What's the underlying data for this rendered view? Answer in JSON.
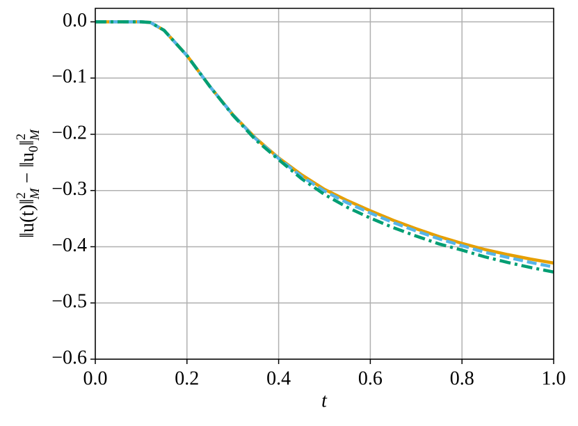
{
  "chart_data": {
    "type": "line",
    "x_label": "t",
    "y_label": [
      "‖u(t)‖",
      "2",
      "M",
      " − ‖u",
      "0",
      "‖",
      "2",
      "M"
    ],
    "x": [
      0,
      0.05,
      0.1,
      0.12,
      0.15,
      0.2,
      0.25,
      0.3,
      0.35,
      0.4,
      0.45,
      0.5,
      0.55,
      0.6,
      0.65,
      0.7,
      0.75,
      0.8,
      0.85,
      0.9,
      0.95,
      1.0
    ],
    "series": [
      {
        "color": "#E69F00",
        "dash": "solid",
        "values": [
          0,
          0,
          0,
          -0.001,
          -0.015,
          -0.06,
          -0.115,
          -0.165,
          -0.207,
          -0.242,
          -0.272,
          -0.298,
          -0.318,
          -0.336,
          -0.353,
          -0.368,
          -0.382,
          -0.394,
          -0.405,
          -0.414,
          -0.422,
          -0.429
        ]
      },
      {
        "color": "#56B4E9",
        "dash": "dashed",
        "values": [
          0,
          0,
          0,
          -0.001,
          -0.015,
          -0.06,
          -0.115,
          -0.165,
          -0.208,
          -0.243,
          -0.275,
          -0.301,
          -0.322,
          -0.34,
          -0.357,
          -0.372,
          -0.386,
          -0.398,
          -0.41,
          -0.419,
          -0.428,
          -0.436
        ]
      },
      {
        "color": "#009E73",
        "dash": "dashdot",
        "values": [
          0,
          0,
          0,
          -0.001,
          -0.015,
          -0.06,
          -0.115,
          -0.166,
          -0.21,
          -0.245,
          -0.279,
          -0.307,
          -0.33,
          -0.349,
          -0.366,
          -0.381,
          -0.395,
          -0.406,
          -0.418,
          -0.428,
          -0.437,
          -0.445
        ]
      }
    ],
    "xlim": [
      0,
      1.0
    ],
    "ylim": [
      -0.6,
      0.024
    ],
    "xticks": [
      {
        "value": 0,
        "label": "0.0"
      },
      0.2,
      0.4,
      0.6,
      0.8,
      {
        "value": 1.0,
        "label": "1.0"
      }
    ],
    "yticks": [
      {
        "value": 0,
        "label": "0.0"
      },
      {
        "value": -0.1,
        "label": "−0.1"
      },
      {
        "value": -0.2,
        "label": "−0.2"
      },
      {
        "value": -0.3,
        "label": "−0.3"
      },
      {
        "value": -0.4,
        "label": "−0.4"
      },
      {
        "value": -0.5,
        "label": "−0.5"
      },
      {
        "value": -0.6,
        "label": "−0.6"
      }
    ],
    "grid": true
  }
}
